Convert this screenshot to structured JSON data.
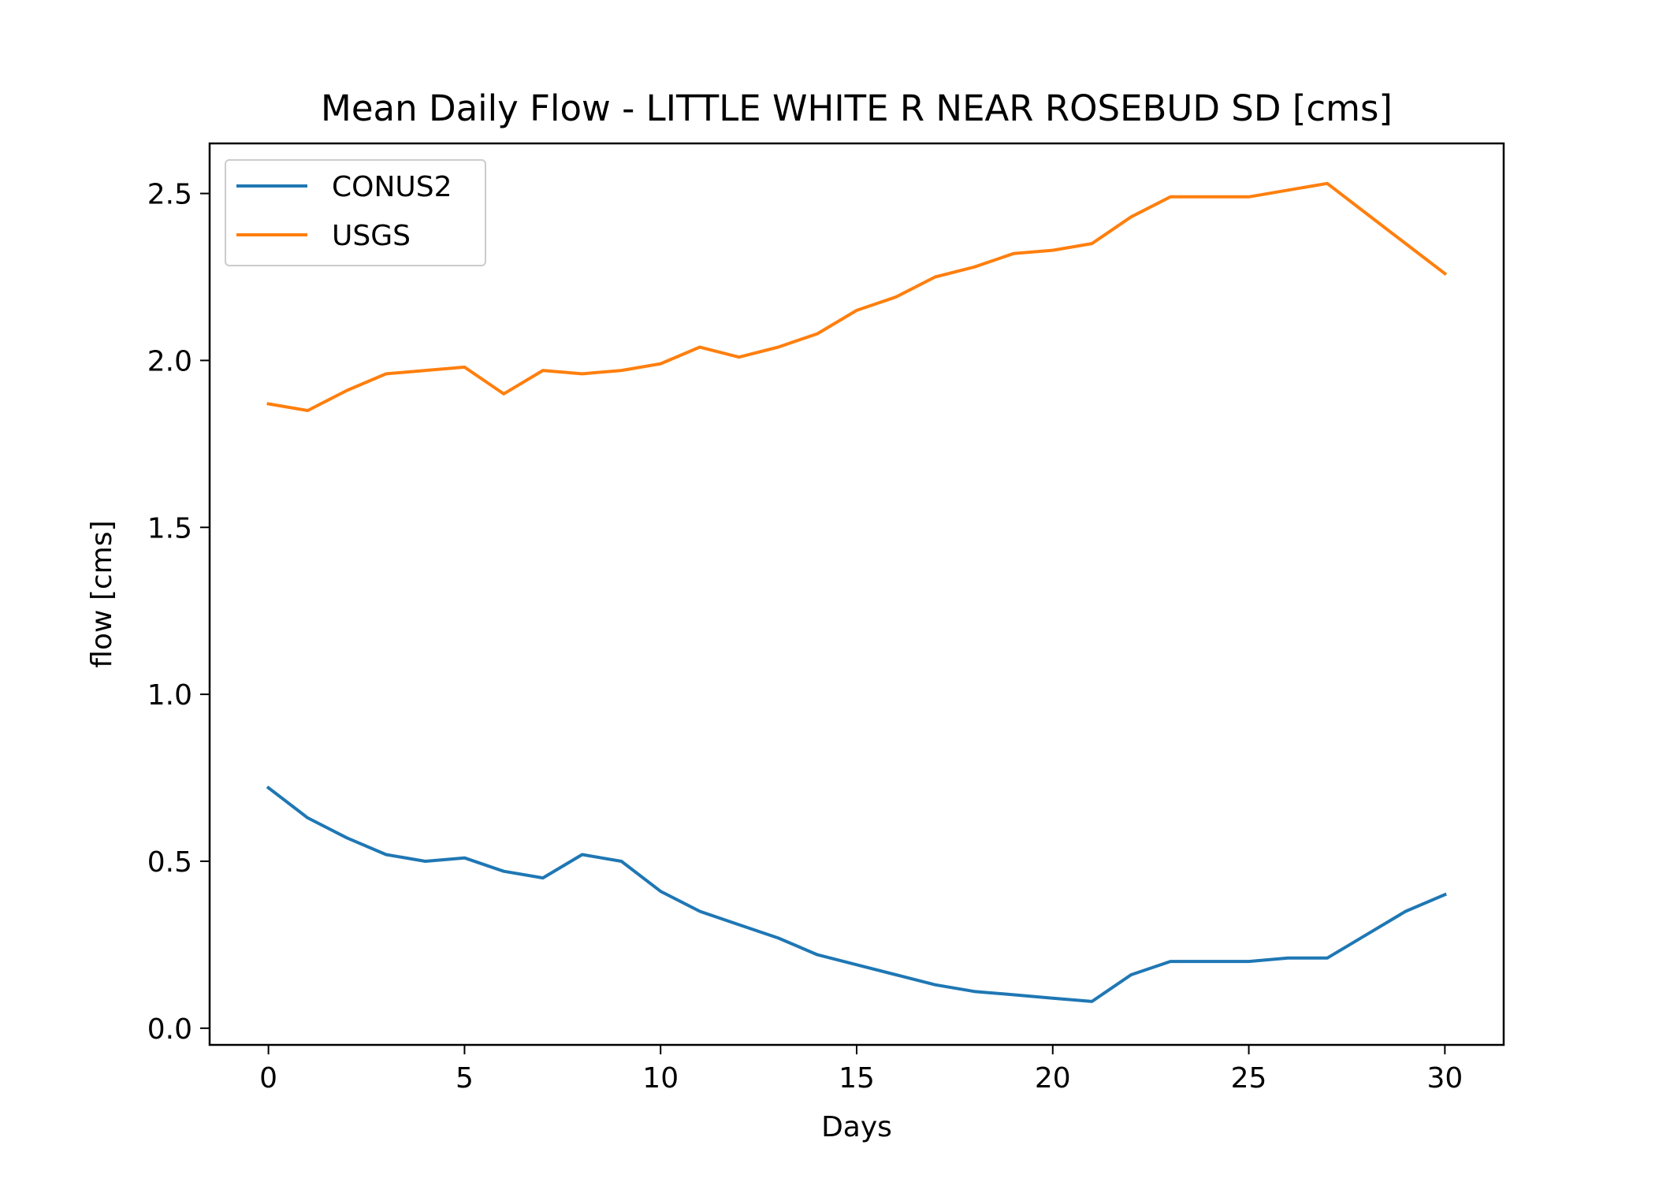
{
  "chart_data": {
    "type": "line",
    "title": "Mean Daily Flow - LITTLE WHITE R NEAR ROSEBUD SD [cms]",
    "xlabel": "Days",
    "ylabel": "flow [cms]",
    "xlim": [
      -1.5,
      31.5
    ],
    "ylim": [
      -0.05,
      2.65
    ],
    "x_ticks": [
      0,
      5,
      10,
      15,
      20,
      25,
      30
    ],
    "y_ticks": [
      0.0,
      0.5,
      1.0,
      1.5,
      2.0,
      2.5
    ],
    "x_tick_labels": [
      "0",
      "5",
      "10",
      "15",
      "20",
      "25",
      "30"
    ],
    "y_tick_labels": [
      "0.0",
      "0.5",
      "1.0",
      "1.5",
      "2.0",
      "2.5"
    ],
    "grid": false,
    "legend_position": "upper-left",
    "x": [
      0,
      1,
      2,
      3,
      4,
      5,
      6,
      7,
      8,
      9,
      10,
      11,
      12,
      13,
      14,
      15,
      16,
      17,
      18,
      19,
      20,
      21,
      22,
      23,
      24,
      25,
      26,
      27,
      28,
      29,
      30
    ],
    "series": [
      {
        "name": "CONUS2",
        "color": "#1f77b4",
        "values": [
          0.72,
          0.63,
          0.57,
          0.52,
          0.5,
          0.51,
          0.47,
          0.45,
          0.52,
          0.5,
          0.41,
          0.35,
          0.31,
          0.27,
          0.22,
          0.19,
          0.16,
          0.13,
          0.11,
          0.1,
          0.09,
          0.08,
          0.16,
          0.2,
          0.2,
          0.2,
          0.21,
          0.21,
          0.28,
          0.35,
          0.4
        ]
      },
      {
        "name": "USGS",
        "color": "#ff7f0e",
        "values": [
          1.87,
          1.85,
          1.91,
          1.96,
          1.97,
          1.98,
          1.9,
          1.97,
          1.96,
          1.97,
          1.99,
          2.04,
          2.01,
          2.04,
          2.08,
          2.15,
          2.19,
          2.25,
          2.28,
          2.32,
          2.33,
          2.35,
          2.43,
          2.49,
          2.49,
          2.49,
          2.51,
          2.53,
          2.44,
          2.35,
          2.26
        ]
      }
    ]
  }
}
